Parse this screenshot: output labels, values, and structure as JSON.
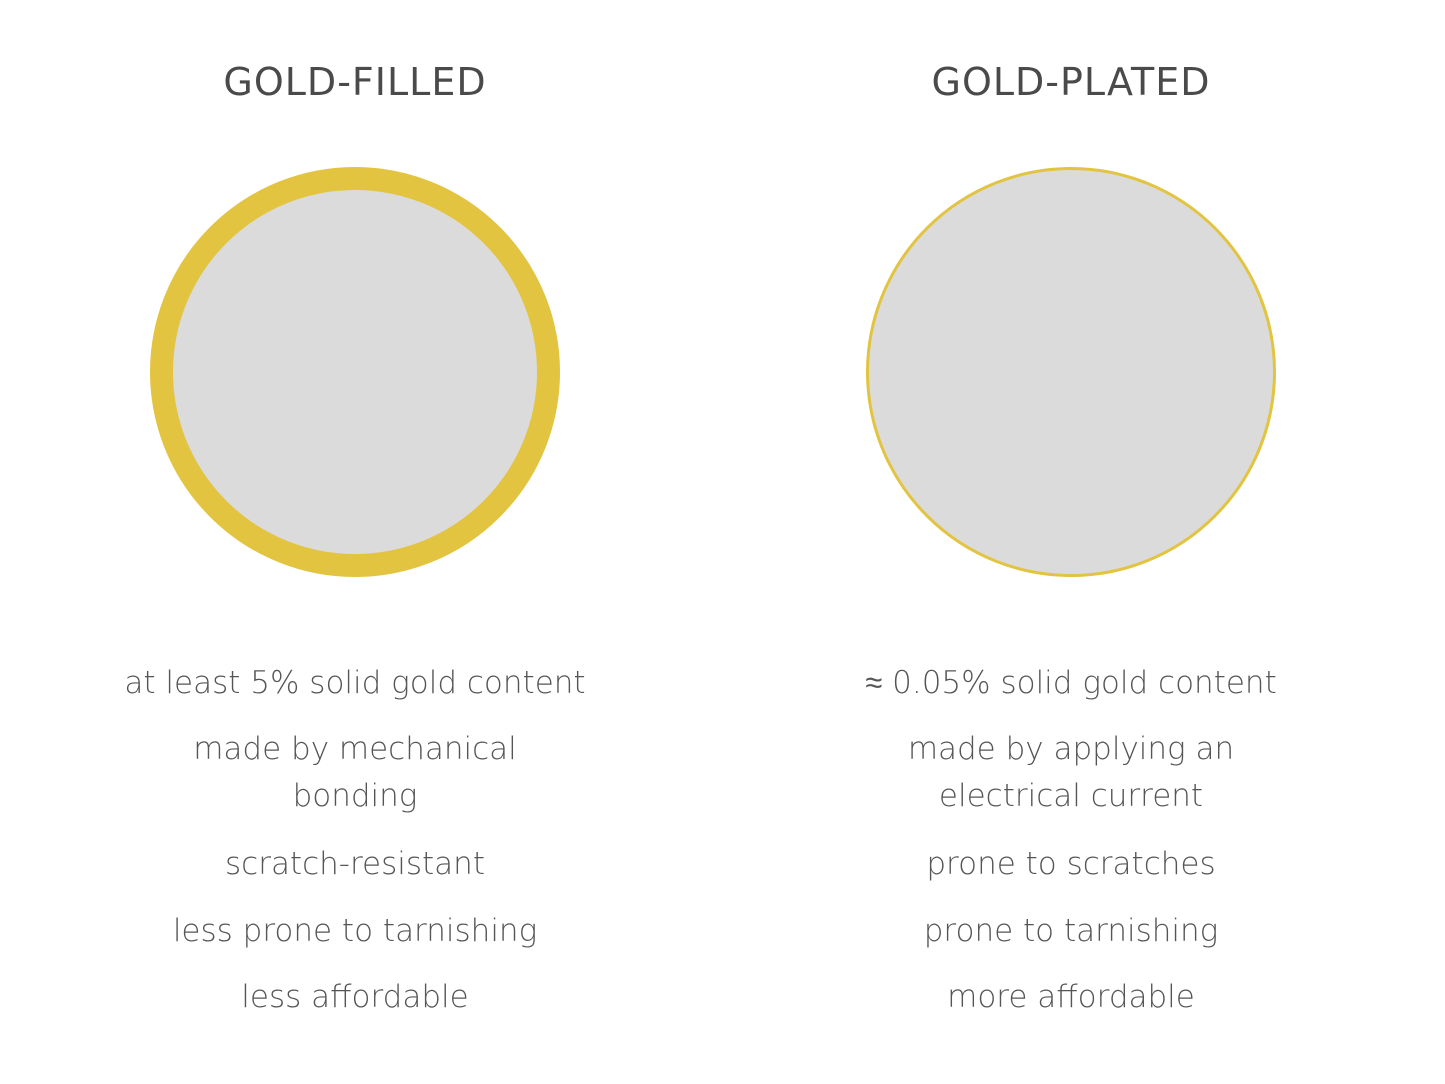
{
  "colors": {
    "gold": "#e2c440",
    "core": "#dbdbdb",
    "text": "#555555"
  },
  "columns": [
    {
      "title": "GOLD-FILLED",
      "layer": "thick",
      "items": [
        "at least 5% solid gold content",
        "made by mechanical bonding",
        "scratch-resistant",
        "less prone to tarnishing",
        "less affordable"
      ]
    },
    {
      "title": "GOLD-PLATED",
      "layer": "thin",
      "items": [
        "≈ 0.05% solid gold content",
        "made by applying an electrical current",
        "prone to scratches",
        "prone to tarnishing",
        "more affordable"
      ]
    }
  ]
}
